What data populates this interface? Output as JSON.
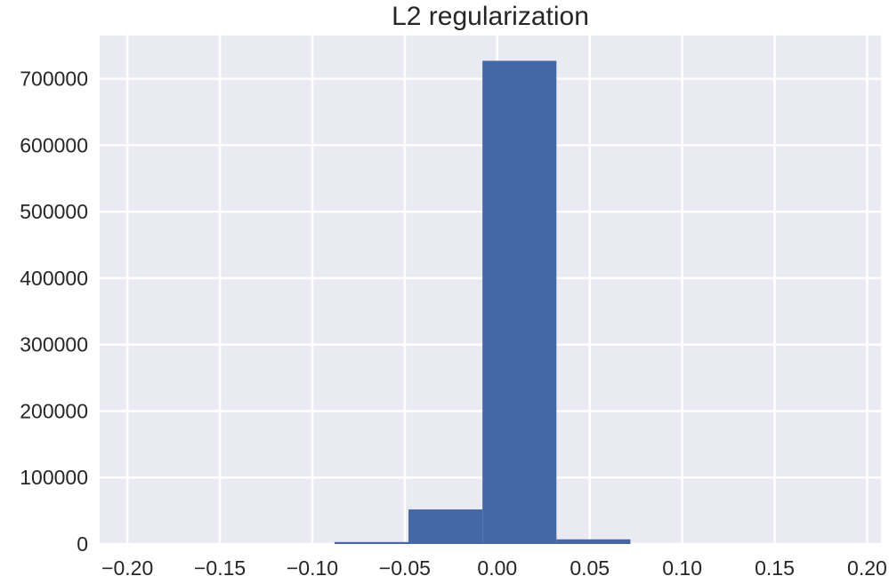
{
  "chart_data": {
    "type": "bar",
    "title": "L2 regularization",
    "xlabel": "",
    "ylabel": "",
    "xlim": [
      -0.215,
      0.2075
    ],
    "ylim": [
      0,
      765000
    ],
    "grid": true,
    "x_ticks": [
      -0.2,
      -0.15,
      -0.1,
      -0.05,
      0.0,
      0.05,
      0.1,
      0.15,
      0.2
    ],
    "x_tick_labels": [
      "−0.20",
      "−0.15",
      "−0.10",
      "−0.05",
      "0.00",
      "0.05",
      "0.10",
      "0.15",
      "0.20"
    ],
    "y_ticks": [
      0,
      100000,
      200000,
      300000,
      400000,
      500000,
      600000,
      700000
    ],
    "y_tick_labels": [
      "0",
      "100000",
      "200000",
      "300000",
      "400000",
      "500000",
      "600000",
      "700000"
    ],
    "bins": [
      {
        "x0": -0.088,
        "x1": -0.048,
        "value": 3000
      },
      {
        "x0": -0.048,
        "x1": -0.008,
        "value": 52000
      },
      {
        "x0": -0.008,
        "x1": 0.032,
        "value": 727000
      },
      {
        "x0": 0.032,
        "x1": 0.072,
        "value": 7000
      }
    ],
    "colors": {
      "background": "#eaeaf2",
      "grid": "#ffffff",
      "bar": "#4467a6",
      "text": "#262626"
    }
  }
}
